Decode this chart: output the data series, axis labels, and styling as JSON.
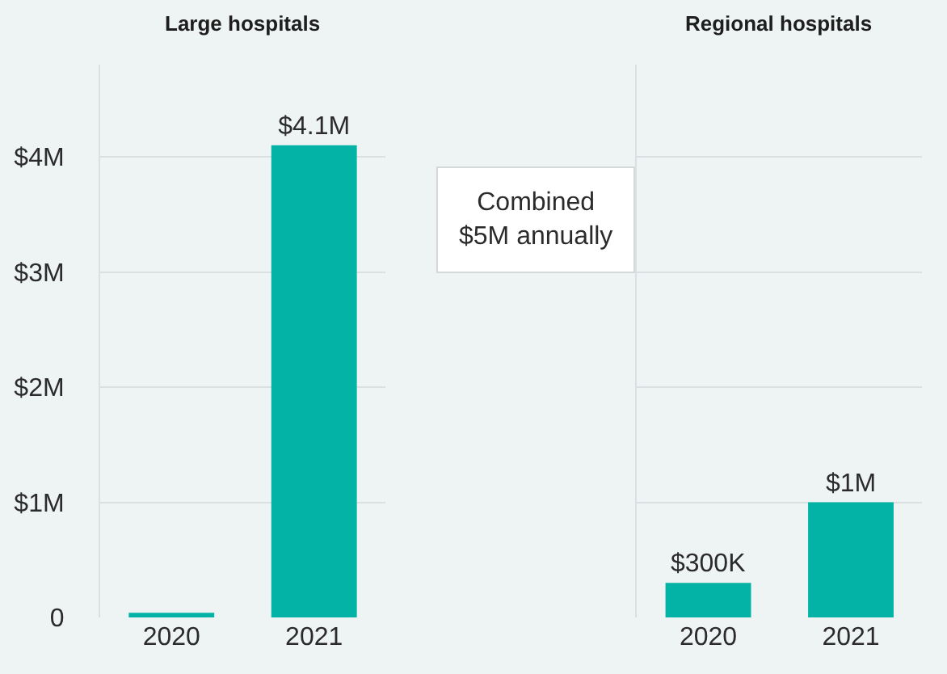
{
  "chart_data": [
    {
      "type": "bar",
      "title": "Large hospitals",
      "categories": [
        "2020",
        "2021"
      ],
      "values": [
        40000,
        4100000
      ],
      "value_labels": [
        null,
        "$4.1M"
      ],
      "color": "#03b3a5",
      "ylim": [
        0,
        4800000
      ],
      "yticks": [
        0,
        {
          "value": 1000000,
          "label": "$1M"
        },
        {
          "value": 2000000,
          "label": "$2M"
        },
        {
          "value": 3000000,
          "label": "$3M"
        },
        {
          "value": 4000000,
          "label": "$4M"
        }
      ],
      "grid": "y",
      "annotations": [
        "Combined\n$5M annually"
      ]
    },
    {
      "type": "bar",
      "title": "Regional hospitals",
      "categories": [
        "2020",
        "2021"
      ],
      "values": [
        300000,
        1000000
      ],
      "value_labels": [
        "$300K",
        "$1M"
      ],
      "color": "#03b3a5",
      "ylim": [
        0,
        4800000
      ],
      "yticks": [
        0,
        1000000,
        2000000,
        3000000,
        4000000
      ],
      "grid": "y",
      "tick_labels": "x"
    }
  ]
}
